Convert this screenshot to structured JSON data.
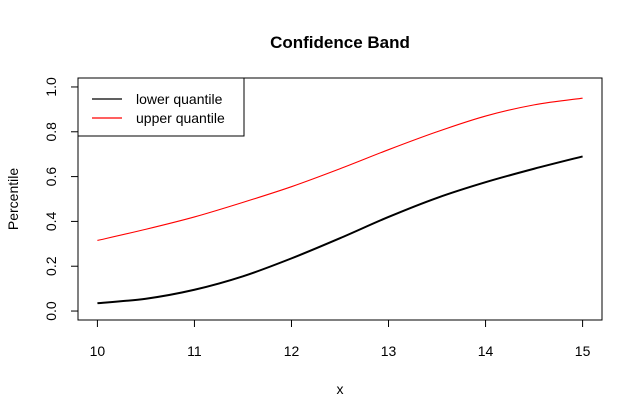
{
  "chart_data": {
    "type": "line",
    "title": "Confidence Band",
    "xlabel": "x",
    "ylabel": "Percentile",
    "xlim": [
      9.8,
      15.2
    ],
    "ylim": [
      -0.04,
      1.04
    ],
    "xticks": [
      10,
      11,
      12,
      13,
      14,
      15
    ],
    "yticks": [
      0.0,
      0.2,
      0.4,
      0.6,
      0.8,
      1.0
    ],
    "xtick_labels": [
      "10",
      "11",
      "12",
      "13",
      "14",
      "15"
    ],
    "ytick_labels": [
      "0.0",
      "0.2",
      "0.4",
      "0.6",
      "0.8",
      "1.0"
    ],
    "grid": false,
    "legend_position": "top-left",
    "series": [
      {
        "name": "lower quantile",
        "color": "#000000",
        "x": [
          10,
          10.5,
          11,
          11.5,
          12,
          12.5,
          13,
          13.5,
          14,
          14.5,
          15
        ],
        "y": [
          0.035,
          0.055,
          0.095,
          0.155,
          0.235,
          0.325,
          0.42,
          0.505,
          0.575,
          0.635,
          0.69
        ]
      },
      {
        "name": "upper quantile",
        "color": "#ff0000",
        "x": [
          10,
          10.5,
          11,
          11.5,
          12,
          12.5,
          13,
          13.5,
          14,
          14.5,
          15
        ],
        "y": [
          0.315,
          0.365,
          0.42,
          0.485,
          0.555,
          0.635,
          0.72,
          0.8,
          0.87,
          0.92,
          0.95
        ]
      }
    ]
  }
}
